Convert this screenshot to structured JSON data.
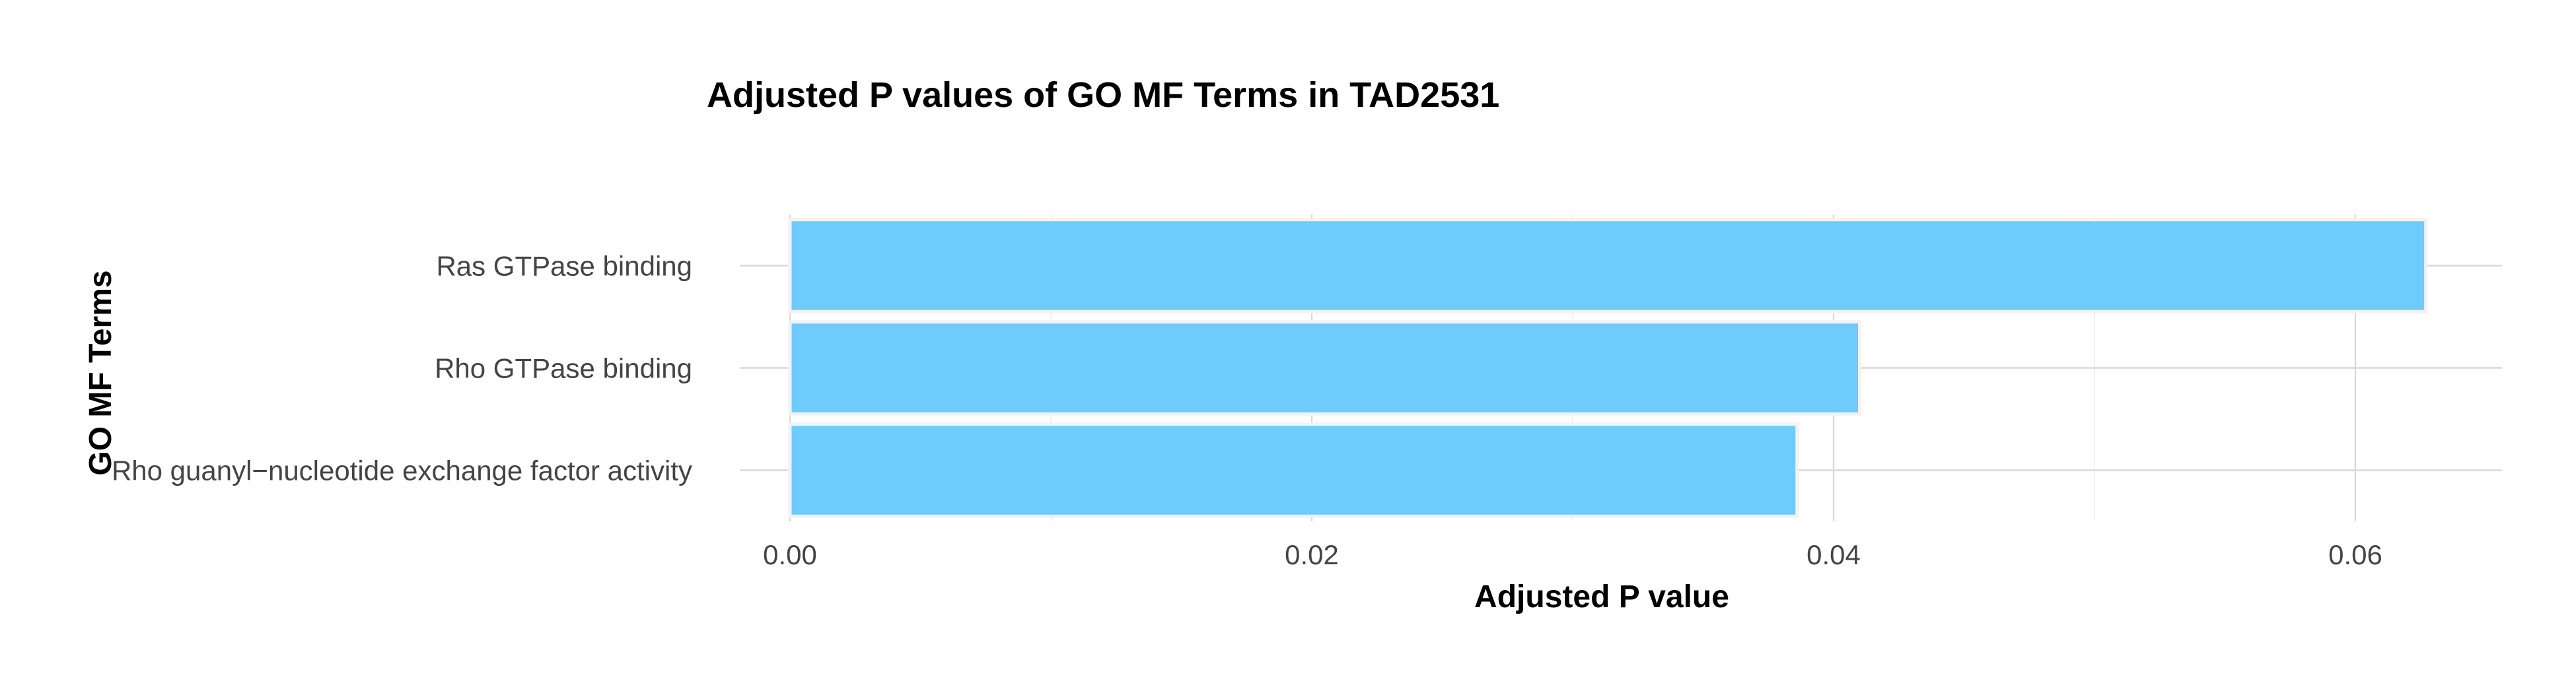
{
  "chart_data": {
    "type": "bar",
    "orientation": "horizontal",
    "title": "Adjusted P values of GO MF Terms in TAD2531",
    "xlabel": "Adjusted P value",
    "ylabel": "GO MF Terms",
    "categories": [
      "Ras GTPase binding",
      "Rho GTPase binding",
      "Rho guanyl−nucleotide exchange factor activity"
    ],
    "values": [
      0.0627,
      0.041,
      0.0386
    ],
    "xlim": [
      0,
      0.0658
    ],
    "x_ticks": [
      0.0,
      0.02,
      0.04,
      0.06
    ],
    "x_tick_labels": [
      "0.00",
      "0.02",
      "0.04",
      "0.06"
    ],
    "x_minor_ticks": [
      0.01,
      0.03,
      0.05
    ],
    "bar_color": "#6ecbfb",
    "grid": true,
    "legend": "none"
  }
}
